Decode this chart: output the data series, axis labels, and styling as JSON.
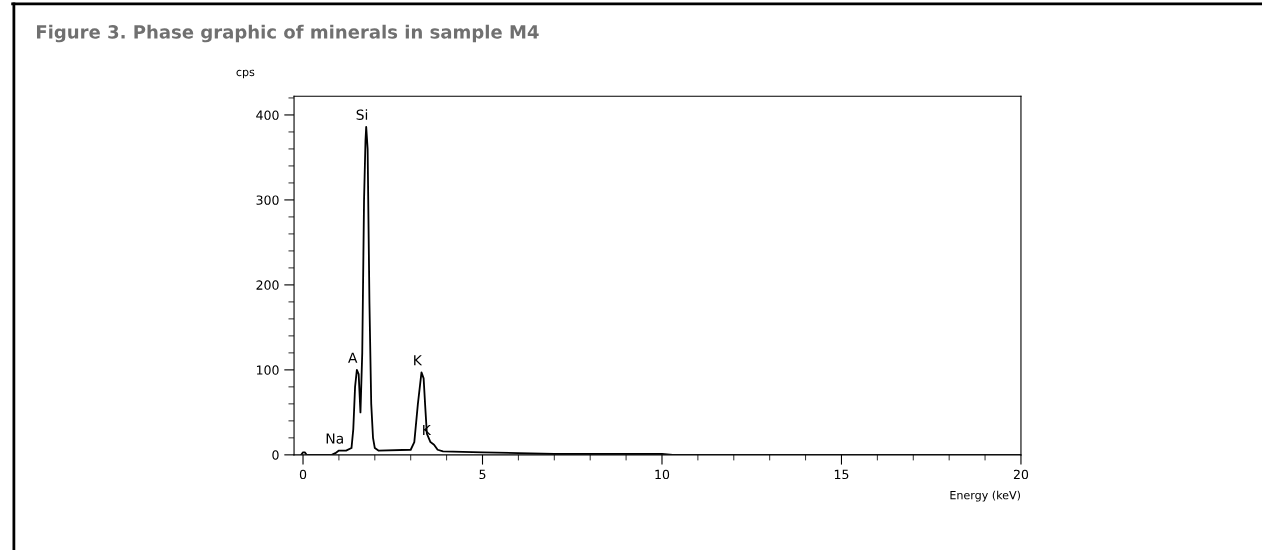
{
  "chart_data": {
    "type": "line",
    "title": "Figure 3. Phase graphic of minerals in sample M4",
    "xlabel": "Energy (keV)",
    "ylabel": "cps",
    "x": [
      -0.05,
      0.0,
      0.05,
      0.1,
      0.8,
      0.9,
      1.0,
      1.2,
      1.35,
      1.4,
      1.45,
      1.5,
      1.55,
      1.6,
      1.65,
      1.7,
      1.74,
      1.76,
      1.8,
      1.85,
      1.9,
      1.95,
      2.0,
      2.1,
      3.0,
      3.1,
      3.2,
      3.3,
      3.36,
      3.4,
      3.45,
      3.55,
      3.65,
      3.75,
      3.9,
      5.0,
      6.0,
      7.0,
      10.0,
      10.3,
      20.0
    ],
    "series": [
      {
        "color": "#000000",
        "values": [
          0,
          3,
          3,
          0,
          0,
          2,
          5,
          5,
          8,
          30,
          80,
          100,
          95,
          50,
          120,
          300,
          370,
          386,
          360,
          180,
          60,
          20,
          8,
          5,
          6,
          15,
          60,
          97,
          90,
          60,
          25,
          15,
          12,
          6,
          4,
          3,
          2,
          1,
          1,
          0,
          0
        ]
      }
    ],
    "xlim": [
      -0.25,
      20
    ],
    "ylim": [
      0,
      422
    ],
    "xticks": [
      0,
      5,
      10,
      15,
      20
    ],
    "yticks": [
      0,
      100,
      200,
      300,
      400
    ],
    "annotations": [
      {
        "text": "Na",
        "x": 1.0,
        "y": 5
      },
      {
        "text": "A",
        "x": 1.5,
        "y": 100
      },
      {
        "text": "Si",
        "x": 1.76,
        "y": 386
      },
      {
        "text": "K",
        "x": 3.3,
        "y": 97
      },
      {
        "text": "K",
        "x": 3.55,
        "y": 15
      }
    ],
    "grid": false,
    "legend": false,
    "marker": "none",
    "line_style": "solid"
  }
}
